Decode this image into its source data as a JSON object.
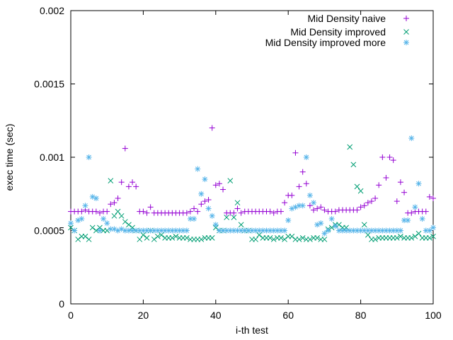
{
  "chart_data": {
    "type": "scatter",
    "title": "",
    "xlabel": "i-th test",
    "ylabel": "exec time (sec)",
    "xlim": [
      0,
      100
    ],
    "ylim": [
      0,
      0.002
    ],
    "xticks": [
      "0",
      "20",
      "40",
      "60",
      "80",
      "100"
    ],
    "yticks": [
      "0",
      "0.0005",
      "0.001",
      "0.0015",
      "0.002"
    ],
    "grid": false,
    "legend_position": "top-right",
    "series": [
      {
        "name": "Mid Density naive",
        "marker": "plus",
        "color": "#9400d3",
        "y": [
          0.00063,
          0.00063,
          0.00063,
          0.00063,
          0.00064,
          0.00063,
          0.00063,
          0.00063,
          0.00062,
          0.00063,
          0.00063,
          0.00068,
          0.00069,
          0.00072,
          0.00083,
          0.00106,
          0.0008,
          0.00083,
          0.0008,
          0.00063,
          0.00063,
          0.00062,
          0.00066,
          0.00062,
          0.00062,
          0.00062,
          0.00062,
          0.00062,
          0.00062,
          0.00062,
          0.00062,
          0.00062,
          0.00062,
          0.00063,
          0.00065,
          0.00063,
          0.00068,
          0.0007,
          0.00071,
          0.0012,
          0.00081,
          0.00082,
          0.00078,
          0.00062,
          0.00062,
          0.00062,
          0.00065,
          0.00062,
          0.00063,
          0.00063,
          0.00063,
          0.00063,
          0.00063,
          0.00063,
          0.00063,
          0.00063,
          0.00062,
          0.00063,
          0.00063,
          0.00069,
          0.00074,
          0.00074,
          0.00103,
          0.0008,
          0.0009,
          0.00082,
          0.00067,
          0.00064,
          0.00065,
          0.00066,
          0.00064,
          0.00063,
          0.00063,
          0.00063,
          0.00064,
          0.00064,
          0.00064,
          0.00064,
          0.00064,
          0.00064,
          0.00066,
          0.00067,
          0.00069,
          0.0007,
          0.00072,
          0.00081,
          0.001,
          0.00086,
          0.001,
          0.00098,
          0.0007,
          0.00083,
          0.00076,
          0.00062,
          0.00062,
          0.00063,
          0.00063,
          0.00063,
          0.00063,
          0.00073,
          0.00072
        ]
      },
      {
        "name": "Mid Density improved",
        "marker": "x",
        "color": "#009e73",
        "y": [
          0.00052,
          0.0005,
          0.00044,
          0.00046,
          0.00046,
          0.00044,
          0.00052,
          0.0005,
          0.00052,
          0.0005,
          0.0005,
          0.00084,
          0.0006,
          0.00063,
          0.0006,
          0.00056,
          0.00054,
          0.00052,
          0.0005,
          0.00044,
          0.00047,
          0.00045,
          0.0005,
          0.00044,
          0.00046,
          0.00047,
          0.00045,
          0.00045,
          0.00045,
          0.00046,
          0.00045,
          0.00045,
          0.00045,
          0.00044,
          0.00044,
          0.00044,
          0.00044,
          0.00045,
          0.00045,
          0.00045,
          0.00052,
          0.0005,
          0.0005,
          0.00059,
          0.00084,
          0.00059,
          0.00069,
          0.00054,
          0.0005,
          0.0005,
          0.00044,
          0.00044,
          0.00047,
          0.00045,
          0.00045,
          0.00045,
          0.00044,
          0.00045,
          0.00045,
          0.00044,
          0.00046,
          0.00046,
          0.00044,
          0.00044,
          0.00045,
          0.00044,
          0.00044,
          0.00045,
          0.00045,
          0.00044,
          0.00044,
          0.00051,
          0.00052,
          0.00054,
          0.00054,
          0.00052,
          0.00052,
          0.00107,
          0.00095,
          0.0008,
          0.00077,
          0.00054,
          0.00047,
          0.00044,
          0.00044,
          0.00045,
          0.00045,
          0.00045,
          0.00045,
          0.00045,
          0.00045,
          0.00046,
          0.00045,
          0.00045,
          0.00045,
          0.00046,
          0.00048,
          0.00045,
          0.00045,
          0.00045,
          0.00046
        ]
      },
      {
        "name": "Mid Density improved more",
        "marker": "star",
        "color": "#56b4e9",
        "y": [
          0.00055,
          0.0005,
          0.00057,
          0.00058,
          0.00067,
          0.001,
          0.00073,
          0.00072,
          0.0005,
          0.00058,
          0.00055,
          0.00051,
          0.00051,
          0.0005,
          0.00051,
          0.0005,
          0.0005,
          0.0005,
          0.0005,
          0.0005,
          0.0005,
          0.0005,
          0.0005,
          0.0005,
          0.0005,
          0.0005,
          0.0005,
          0.0005,
          0.0005,
          0.0005,
          0.0005,
          0.0005,
          0.0005,
          0.00058,
          0.00058,
          0.00092,
          0.00075,
          0.00085,
          0.00065,
          0.0006,
          0.00054,
          0.0005,
          0.0005,
          0.0005,
          0.0005,
          0.0005,
          0.0005,
          0.0005,
          0.0005,
          0.0005,
          0.0005,
          0.0005,
          0.0005,
          0.0005,
          0.0005,
          0.0005,
          0.0005,
          0.0005,
          0.0005,
          0.0005,
          0.00057,
          0.00065,
          0.00066,
          0.00067,
          0.00067,
          0.001,
          0.00074,
          0.00069,
          0.00054,
          0.00055,
          0.00048,
          0.0005,
          0.00058,
          0.00053,
          0.0005,
          0.0005,
          0.0005,
          0.0005,
          0.0005,
          0.0005,
          0.0005,
          0.0005,
          0.0005,
          0.0005,
          0.0005,
          0.0005,
          0.0005,
          0.0005,
          0.0005,
          0.0005,
          0.0005,
          0.0005,
          0.00057,
          0.00057,
          0.00113,
          0.00066,
          0.00082,
          0.00058,
          0.0005,
          0.0005,
          0.00052
        ]
      }
    ]
  }
}
